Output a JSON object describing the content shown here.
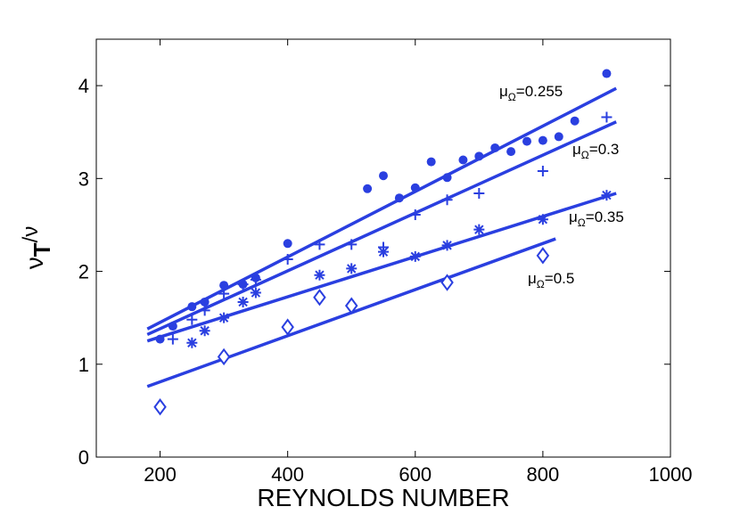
{
  "chart_data": {
    "type": "scatter",
    "title": "",
    "xlabel": "REYNOLDS NUMBER",
    "ylabel": {
      "main": "ν",
      "sub": "T",
      "tail": "/ν"
    },
    "xlim": [
      100,
      1000
    ],
    "ylim": [
      0,
      4.5
    ],
    "xticks": [
      200,
      400,
      600,
      800,
      1000
    ],
    "yticks": [
      0,
      1,
      2,
      3,
      4
    ],
    "grid": false,
    "legend": "none",
    "color": "#2a3fe0",
    "series": [
      {
        "name": "μΩ=0.255",
        "marker": "dot",
        "label": {
          "prefix": "μ",
          "sub": "Ω",
          "value": "=0.255"
        },
        "x": [
          200,
          220,
          250,
          270,
          300,
          330,
          350,
          400,
          525,
          550,
          575,
          600,
          625,
          650,
          675,
          700,
          725,
          750,
          775,
          800,
          825,
          850,
          900
        ],
        "y": [
          1.27,
          1.41,
          1.62,
          1.67,
          1.85,
          1.86,
          1.93,
          2.3,
          2.89,
          3.03,
          2.79,
          2.9,
          3.18,
          3.01,
          3.2,
          3.24,
          3.33,
          3.29,
          3.4,
          3.41,
          3.45,
          3.62,
          4.13
        ],
        "fit": {
          "x": [
            180,
            915
          ],
          "y": [
            1.38,
            3.97
          ]
        }
      },
      {
        "name": "μΩ=0.3",
        "marker": "plus",
        "label": {
          "prefix": "μ",
          "sub": "Ω",
          "value": "=0.3"
        },
        "x": [
          220,
          250,
          270,
          300,
          330,
          350,
          400,
          450,
          500,
          550,
          600,
          650,
          700,
          800,
          900
        ],
        "y": [
          1.27,
          1.48,
          1.58,
          1.76,
          1.86,
          1.91,
          2.13,
          2.29,
          2.29,
          2.26,
          2.61,
          2.77,
          2.84,
          3.08,
          3.66
        ],
        "fit": {
          "x": [
            180,
            915
          ],
          "y": [
            1.32,
            3.61
          ]
        }
      },
      {
        "name": "μΩ=0.35",
        "marker": "asterisk",
        "label": {
          "prefix": "μ",
          "sub": "Ω",
          "value": "=0.35"
        },
        "x": [
          250,
          270,
          300,
          330,
          350,
          450,
          500,
          550,
          600,
          650,
          700,
          800,
          900
        ],
        "y": [
          1.23,
          1.36,
          1.5,
          1.67,
          1.77,
          1.96,
          2.03,
          2.21,
          2.16,
          2.28,
          2.45,
          2.56,
          2.82
        ],
        "fit": {
          "x": [
            180,
            915
          ],
          "y": [
            1.25,
            2.84
          ]
        }
      },
      {
        "name": "μΩ=0.5",
        "marker": "diamond",
        "label": {
          "prefix": "μ",
          "sub": "Ω",
          "value": "=0.5"
        },
        "x": [
          200,
          300,
          400,
          450,
          500,
          650,
          800
        ],
        "y": [
          0.54,
          1.08,
          1.4,
          1.72,
          1.63,
          1.88,
          2.17
        ],
        "fit": {
          "x": [
            180,
            820
          ],
          "y": [
            0.76,
            2.35
          ]
        }
      }
    ]
  }
}
